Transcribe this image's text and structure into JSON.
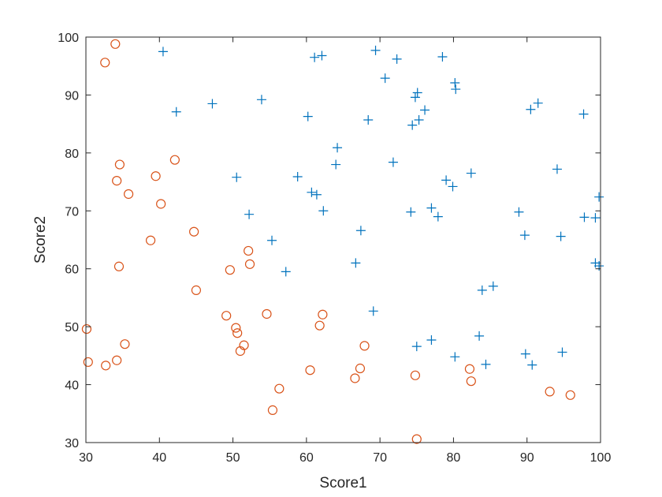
{
  "chart_data": {
    "type": "scatter",
    "xlabel": "Score1",
    "ylabel": "Score2",
    "xlim": [
      30,
      100
    ],
    "ylim": [
      30,
      100
    ],
    "xticks": [
      "30",
      "40",
      "50",
      "60",
      "70",
      "80",
      "90",
      "100"
    ],
    "yticks": [
      "30",
      "40",
      "50",
      "60",
      "70",
      "80",
      "90",
      "100"
    ],
    "grid": false,
    "legend": "none",
    "series": [
      {
        "marker": "plus",
        "color": "#0072BD",
        "points": [
          [
            40.5,
            97.5
          ],
          [
            61.1,
            96.5
          ],
          [
            62.1,
            96.8
          ],
          [
            69.4,
            97.7
          ],
          [
            72.3,
            96.2
          ],
          [
            78.5,
            96.6
          ],
          [
            70.7,
            92.9
          ],
          [
            80.2,
            92.1
          ],
          [
            80.3,
            91.0
          ],
          [
            75.1,
            90.4
          ],
          [
            74.8,
            89.6
          ],
          [
            53.9,
            89.2
          ],
          [
            47.2,
            88.5
          ],
          [
            91.5,
            88.6
          ],
          [
            90.5,
            87.5
          ],
          [
            42.3,
            87.1
          ],
          [
            76.1,
            87.4
          ],
          [
            60.2,
            86.3
          ],
          [
            97.7,
            86.7
          ],
          [
            75.3,
            85.7
          ],
          [
            68.4,
            85.7
          ],
          [
            74.4,
            84.8
          ],
          [
            64.2,
            80.9
          ],
          [
            71.8,
            78.4
          ],
          [
            64.0,
            78.0
          ],
          [
            94.1,
            77.2
          ],
          [
            82.4,
            76.5
          ],
          [
            50.5,
            75.8
          ],
          [
            58.8,
            75.9
          ],
          [
            79.0,
            75.3
          ],
          [
            79.9,
            74.2
          ],
          [
            60.7,
            73.2
          ],
          [
            61.4,
            72.8
          ],
          [
            99.8,
            72.4
          ],
          [
            77.0,
            70.5
          ],
          [
            62.3,
            70.0
          ],
          [
            74.2,
            69.8
          ],
          [
            88.9,
            69.8
          ],
          [
            52.2,
            69.4
          ],
          [
            77.9,
            69.0
          ],
          [
            97.8,
            68.9
          ],
          [
            99.3,
            68.8
          ],
          [
            67.4,
            66.6
          ],
          [
            89.7,
            65.8
          ],
          [
            94.6,
            65.6
          ],
          [
            55.3,
            64.9
          ],
          [
            66.7,
            61.0
          ],
          [
            99.3,
            61.0
          ],
          [
            99.8,
            60.5
          ],
          [
            57.2,
            59.5
          ],
          [
            85.4,
            57.0
          ],
          [
            83.9,
            56.3
          ],
          [
            69.1,
            52.7
          ],
          [
            83.5,
            48.4
          ],
          [
            77.0,
            47.7
          ],
          [
            75.0,
            46.6
          ],
          [
            94.8,
            45.6
          ],
          [
            89.8,
            45.3
          ],
          [
            80.2,
            44.8
          ],
          [
            84.4,
            43.5
          ],
          [
            90.7,
            43.4
          ]
        ]
      },
      {
        "marker": "circle",
        "color": "#D95319",
        "points": [
          [
            34.0,
            98.8
          ],
          [
            32.6,
            95.6
          ],
          [
            42.1,
            78.8
          ],
          [
            34.6,
            78.0
          ],
          [
            39.5,
            76.0
          ],
          [
            34.2,
            75.2
          ],
          [
            35.8,
            72.9
          ],
          [
            40.2,
            71.2
          ],
          [
            44.7,
            66.4
          ],
          [
            38.8,
            64.9
          ],
          [
            52.1,
            63.1
          ],
          [
            52.3,
            60.8
          ],
          [
            34.5,
            60.4
          ],
          [
            49.6,
            59.8
          ],
          [
            45.0,
            56.3
          ],
          [
            54.6,
            52.2
          ],
          [
            62.2,
            52.1
          ],
          [
            49.1,
            51.9
          ],
          [
            61.8,
            50.2
          ],
          [
            30.1,
            49.6
          ],
          [
            50.4,
            49.8
          ],
          [
            50.6,
            48.9
          ],
          [
            35.3,
            47.0
          ],
          [
            51.5,
            46.8
          ],
          [
            67.9,
            46.7
          ],
          [
            51.0,
            45.8
          ],
          [
            34.2,
            44.2
          ],
          [
            30.3,
            43.9
          ],
          [
            32.7,
            43.3
          ],
          [
            82.2,
            42.7
          ],
          [
            60.5,
            42.5
          ],
          [
            67.3,
            42.8
          ],
          [
            74.8,
            41.6
          ],
          [
            66.6,
            41.1
          ],
          [
            82.4,
            40.6
          ],
          [
            56.3,
            39.3
          ],
          [
            93.1,
            38.8
          ],
          [
            95.9,
            38.2
          ],
          [
            55.4,
            35.6
          ],
          [
            75.0,
            30.6
          ]
        ]
      }
    ]
  }
}
